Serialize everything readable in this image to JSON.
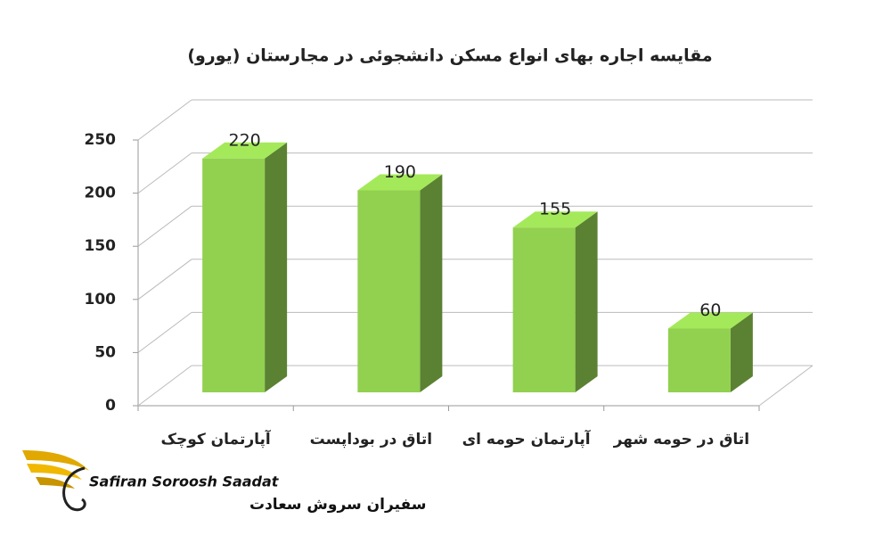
{
  "chart_data": {
    "type": "bar3d",
    "title": "مقایسه اجاره بهای انواع مسکن دانشجوئی در مجارستان (یورو)",
    "categories": [
      "آپارتمان کوچک",
      "اتاق در بوداپست",
      "آپارتمان حومه ای",
      "اتاق در حومه شهر"
    ],
    "values": [
      220,
      190,
      155,
      60
    ],
    "color": "#92d050",
    "ylim": [
      0,
      250
    ],
    "yticks": [
      0,
      50,
      100,
      150,
      200,
      250
    ],
    "grid": true
  },
  "logo": {
    "name_en": "Safiran Soroosh Saadat",
    "name_fa": "سفیران سروش سعادت"
  }
}
